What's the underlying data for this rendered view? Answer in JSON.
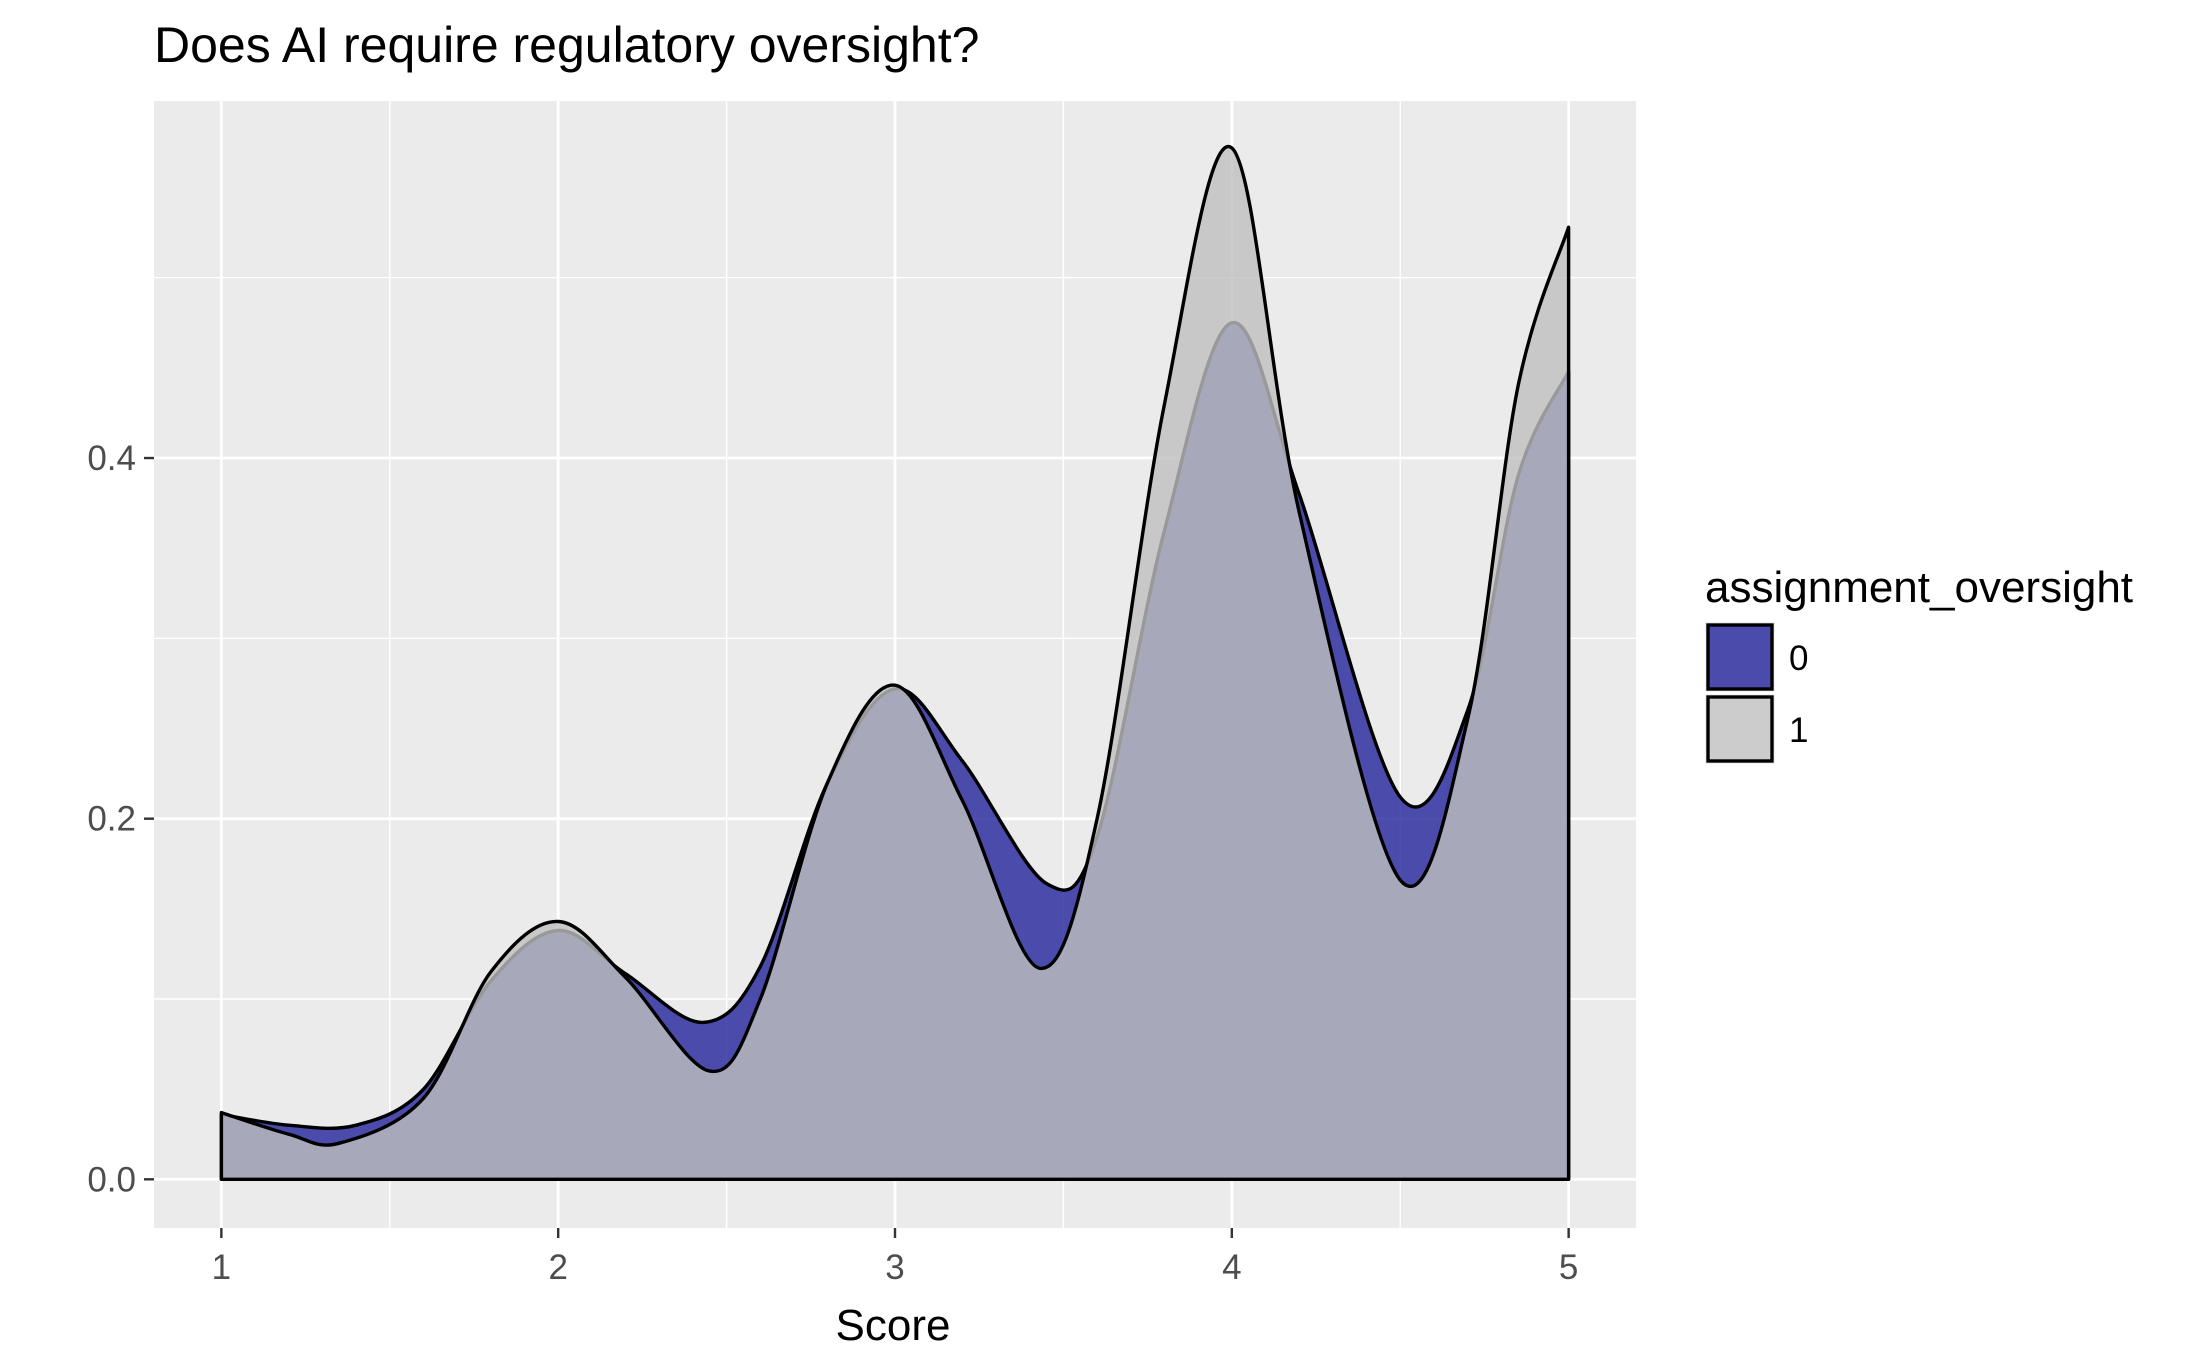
{
  "chart_data": {
    "type": "area",
    "subtype": "density",
    "title": "Does AI require regulatory oversight?",
    "xlabel": "Score",
    "ylabel": "",
    "xlim": [
      0.8,
      5.2
    ],
    "ylim": [
      -0.027,
      0.598
    ],
    "x_ticks": [
      1,
      2,
      3,
      4,
      5
    ],
    "x_tick_labels": [
      "1",
      "2",
      "3",
      "4",
      "5"
    ],
    "y_ticks": [
      0.0,
      0.2,
      0.4
    ],
    "y_tick_labels": [
      "0.0",
      "0.2",
      "0.4"
    ],
    "y_minor_gridlines": [
      0.1,
      0.3,
      0.5
    ],
    "x_minor_gridlines": [
      1.5,
      2.5,
      3.5,
      4.5
    ],
    "grid": true,
    "panel_background": "#ebebeb",
    "legend": {
      "title": "assignment_oversight",
      "position": "right",
      "entries": [
        {
          "label": "0",
          "color": "#4b4bab"
        },
        {
          "label": "1",
          "color": "#cccccc"
        }
      ]
    },
    "series": [
      {
        "name": "0",
        "color": "#23239b",
        "fill_alpha": 0.8,
        "x": [
          1.0,
          1.2,
          1.4,
          1.6,
          1.8,
          2.0,
          2.2,
          2.43,
          2.6,
          2.8,
          3.0,
          3.2,
          3.45,
          3.6,
          3.8,
          4.0,
          4.2,
          4.5,
          4.7,
          4.85,
          5.0
        ],
        "y": [
          0.036,
          0.03,
          0.03,
          0.05,
          0.11,
          0.138,
          0.114,
          0.087,
          0.118,
          0.22,
          0.272,
          0.232,
          0.164,
          0.19,
          0.36,
          0.475,
          0.38,
          0.212,
          0.26,
          0.39,
          0.448
        ]
      },
      {
        "name": "1",
        "color": "#bfbfbf",
        "fill_alpha": 0.8,
        "x": [
          1.0,
          1.2,
          1.35,
          1.6,
          1.8,
          2.0,
          2.2,
          2.45,
          2.6,
          2.8,
          3.0,
          3.2,
          3.43,
          3.6,
          3.8,
          4.0,
          4.2,
          4.5,
          4.7,
          4.85,
          5.0
        ],
        "y": [
          0.037,
          0.025,
          0.02,
          0.045,
          0.115,
          0.143,
          0.112,
          0.06,
          0.1,
          0.22,
          0.274,
          0.21,
          0.117,
          0.2,
          0.43,
          0.572,
          0.37,
          0.166,
          0.255,
          0.44,
          0.528
        ]
      }
    ]
  }
}
